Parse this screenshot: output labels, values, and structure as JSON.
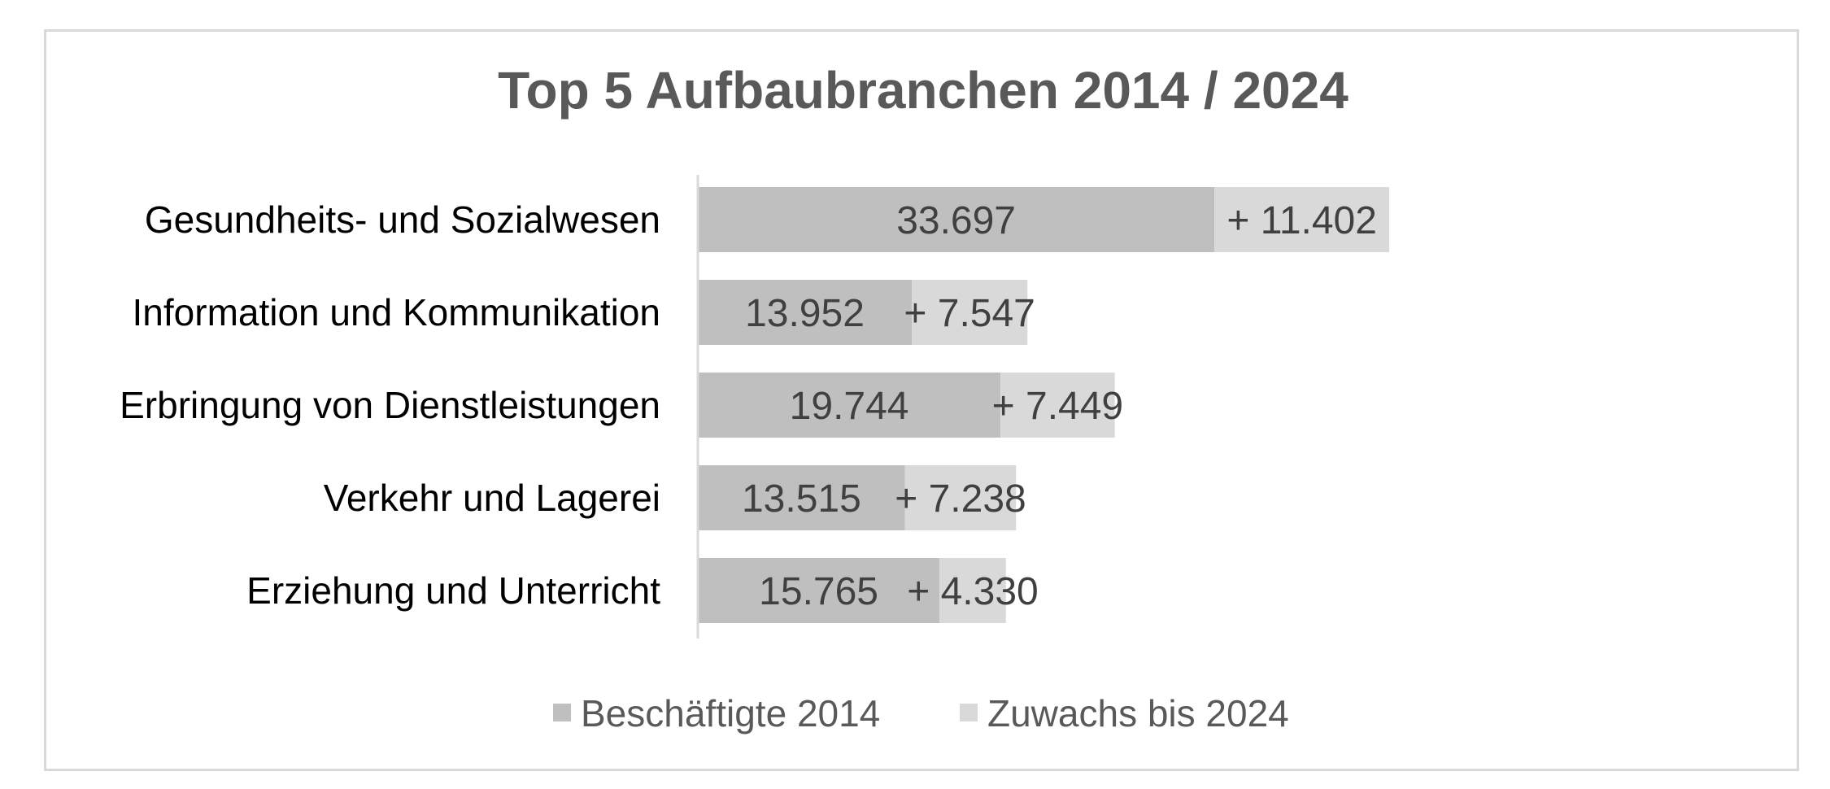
{
  "chart_data": {
    "type": "bar",
    "orientation": "horizontal",
    "stacked": true,
    "title": "Top 5 Aufbaubranchen 2014 / 2024",
    "categories": [
      "Gesundheits- und Sozialwesen",
      "Information und Kommunikation",
      "Erbringung von Dienstleistungen",
      "Verkehr und Lagerei",
      "Erziehung und Unterricht"
    ],
    "series": [
      {
        "name": "Beschäftigte 2014",
        "values": [
          33697,
          13952,
          19744,
          13515,
          15765
        ],
        "labels": [
          "33.697",
          "13.952",
          "19.744",
          "13.515",
          "15.765"
        ],
        "color": "#bfbfbf"
      },
      {
        "name": "Zuwachs bis 2024",
        "values": [
          11402,
          7547,
          7449,
          7238,
          4330
        ],
        "labels": [
          "+ 11.402",
          "+ 7.547",
          "+ 7.449",
          "+ 7.238",
          "+ 4.330"
        ],
        "color": "#d9d9d9"
      }
    ],
    "xlim": [
      0,
      50000
    ],
    "legend_position": "bottom",
    "grid": false,
    "axis_line_color": "#d9d9d9"
  }
}
